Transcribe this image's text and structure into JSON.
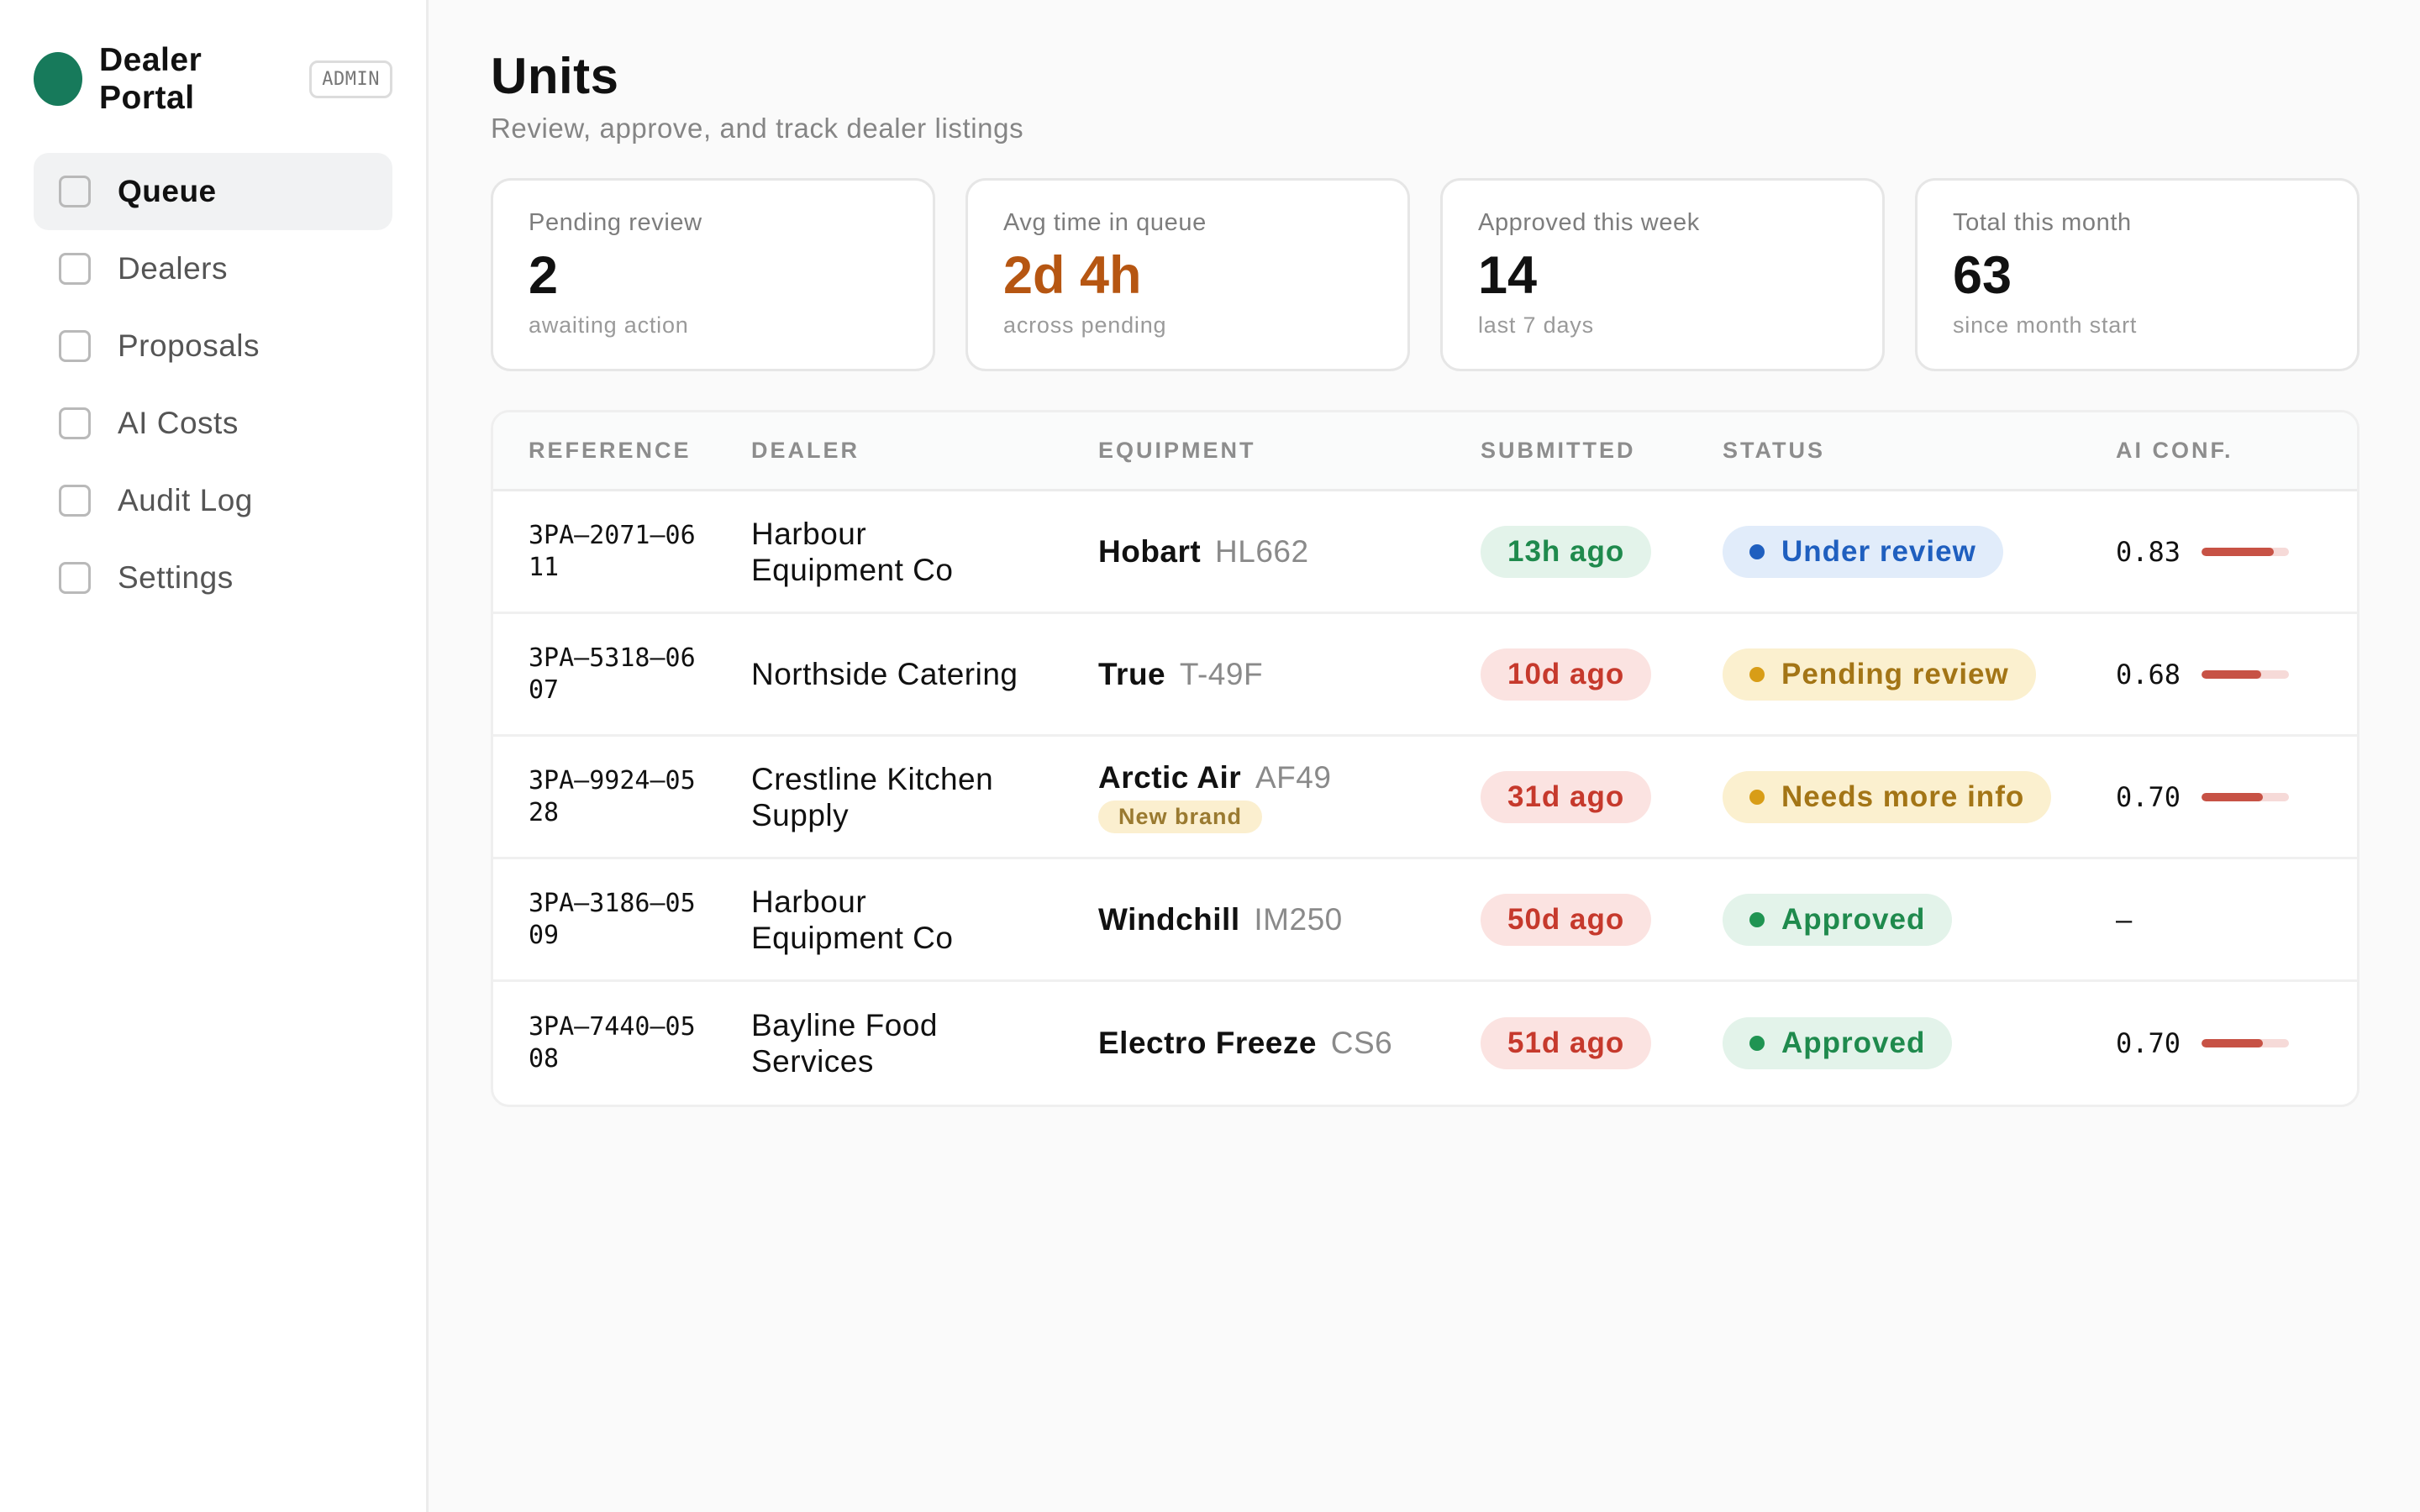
{
  "sidebar": {
    "brand_name": "Dealer Portal",
    "badge": "ADMIN",
    "items": [
      {
        "label": "Queue"
      },
      {
        "label": "Dealers"
      },
      {
        "label": "Proposals"
      },
      {
        "label": "AI Costs"
      },
      {
        "label": "Audit Log"
      },
      {
        "label": "Settings"
      }
    ]
  },
  "header": {
    "title": "Units",
    "subtitle": "Review, approve, and track dealer listings"
  },
  "stats": [
    {
      "label": "Pending review",
      "value": "2",
      "sub": "awaiting action"
    },
    {
      "label": "Avg time in queue",
      "value": "2d 4h",
      "sub": "across pending",
      "value_color": "#b65612"
    },
    {
      "label": "Approved this week",
      "value": "14",
      "sub": "last 7 days"
    },
    {
      "label": "Total this month",
      "value": "63",
      "sub": "since month start"
    }
  ],
  "table": {
    "columns": [
      "REFERENCE",
      "DEALER",
      "EQUIPMENT",
      "SUBMITTED",
      "STATUS",
      "AI CONF."
    ],
    "rows": [
      {
        "reference": "3PA–2071–0611",
        "dealer": "Harbour Equipment Co",
        "brand": "Hobart",
        "model": "HL662",
        "submitted": "13h ago",
        "submitted_tone": "green",
        "status": "Under review",
        "status_tone": "blue",
        "conf": "0.83",
        "conf_fraction": 0.83
      },
      {
        "reference": "3PA–5318–0607",
        "dealer": "Northside Catering",
        "brand": "True",
        "model": "T-49F",
        "submitted": "10d ago",
        "submitted_tone": "red",
        "status": "Pending review",
        "status_tone": "amber",
        "conf": "0.68",
        "conf_fraction": 0.68
      },
      {
        "reference": "3PA–9924–0528",
        "dealer": "Crestline Kitchen Supply",
        "brand": "Arctic Air",
        "model": "AF49",
        "tag": "New brand",
        "submitted": "31d ago",
        "submitted_tone": "red",
        "status": "Needs more info",
        "status_tone": "amber",
        "conf": "0.70",
        "conf_fraction": 0.7
      },
      {
        "reference": "3PA–3186–0509",
        "dealer": "Harbour Equipment Co",
        "brand": "Windchill",
        "model": "IM250",
        "submitted": "50d ago",
        "submitted_tone": "red",
        "status": "Approved",
        "status_tone": "green",
        "conf": "–"
      },
      {
        "reference": "3PA–7440–0508",
        "dealer": "Bayline Food Services",
        "brand": "Electro Freeze",
        "model": "CS6",
        "submitted": "51d ago",
        "submitted_tone": "red",
        "status": "Approved",
        "status_tone": "green",
        "conf": "0.70",
        "conf_fraction": 0.7
      }
    ]
  }
}
